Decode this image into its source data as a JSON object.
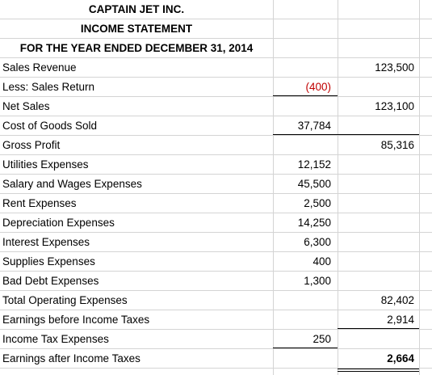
{
  "header": {
    "company": "CAPTAIN JET INC.",
    "statement": "INCOME STATEMENT",
    "period": "FOR THE YEAR ENDED DECEMBER 31, 2014"
  },
  "rows": [
    {
      "label": "Sales Revenue",
      "col1": "",
      "col2": "123,500"
    },
    {
      "label": "Less: Sales Return",
      "col1": "(400)",
      "col2": ""
    },
    {
      "label": "Net Sales",
      "col1": "",
      "col2": "123,100"
    },
    {
      "label": "Cost of Goods Sold",
      "col1": "37,784",
      "col2": ""
    },
    {
      "label": "Gross Profit",
      "col1": "",
      "col2": "85,316"
    },
    {
      "label": "Utilities Expenses",
      "col1": "12,152",
      "col2": ""
    },
    {
      "label": "Salary and Wages Expenses",
      "col1": "45,500",
      "col2": ""
    },
    {
      "label": "Rent Expenses",
      "col1": "2,500",
      "col2": ""
    },
    {
      "label": "Depreciation Expenses",
      "col1": "14,250",
      "col2": ""
    },
    {
      "label": "Interest Expenses",
      "col1": "6,300",
      "col2": ""
    },
    {
      "label": "Supplies Expenses",
      "col1": "400",
      "col2": ""
    },
    {
      "label": "Bad Debt Expenses",
      "col1": "1,300",
      "col2": ""
    },
    {
      "label": "Total Operating Expenses",
      "col1": "",
      "col2": "82,402"
    },
    {
      "label": "Earnings before Income Taxes",
      "col1": "",
      "col2": "2,914"
    },
    {
      "label": "Income Tax Expenses",
      "col1": "250",
      "col2": ""
    },
    {
      "label": "Earnings after Income Taxes",
      "col1": "",
      "col2": "2,664"
    }
  ],
  "colors": {
    "negative": "#c00000",
    "gridline": "#d4d4d4"
  }
}
